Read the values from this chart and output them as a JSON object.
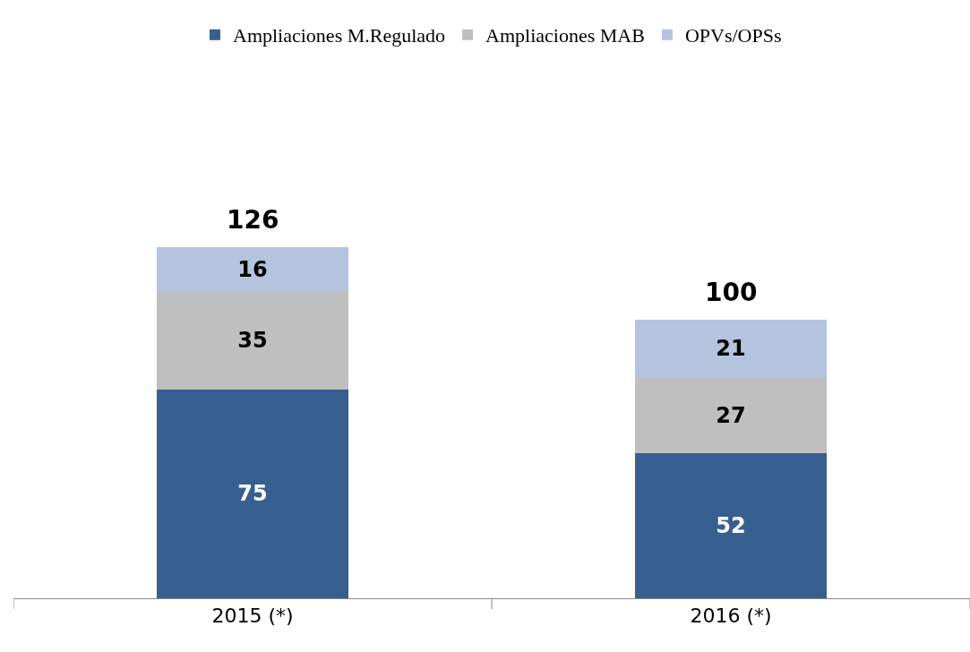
{
  "chart_data": {
    "type": "bar",
    "stacked": true,
    "categories": [
      "2015 (*)",
      "2016 (*)"
    ],
    "series": [
      {
        "name": "Ampliaciones M.Regulado",
        "color": "#375f8f",
        "values": [
          75,
          52
        ]
      },
      {
        "name": "Ampliaciones MAB",
        "color": "#bfbfbf",
        "values": [
          35,
          27
        ]
      },
      {
        "name": "OPVs/OPSs",
        "color": "#b4c3de",
        "values": [
          16,
          21
        ]
      }
    ],
    "data_labels": true,
    "totals": [
      "126",
      "100"
    ],
    "legend": "top"
  }
}
